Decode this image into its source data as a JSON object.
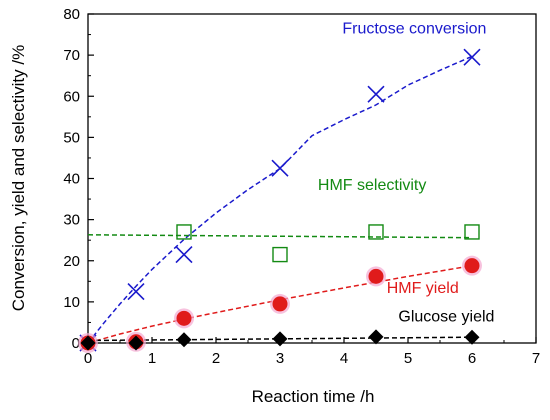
{
  "chart_data": {
    "type": "scatter",
    "xlabel": "Reaction time /h",
    "ylabel": "Conversion, yield and selectivity /%",
    "xlim": [
      0,
      7
    ],
    "ylim": [
      0,
      80
    ],
    "xticks": [
      "0",
      "1",
      "2",
      "3",
      "4",
      "5",
      "6",
      "7"
    ],
    "yticks": [
      "0",
      "10",
      "20",
      "30",
      "40",
      "50",
      "60",
      "70",
      "80"
    ],
    "grid": false,
    "series": [
      {
        "name": "Fructose conversion",
        "marker": "x",
        "color": "#1a1acc",
        "x": [
          0,
          0.75,
          1.5,
          3,
          4.5,
          6
        ],
        "y": [
          0,
          12.5,
          21.5,
          42.5,
          60.5,
          69.5
        ],
        "trend_x": [
          0,
          0.25,
          0.5,
          0.75,
          1,
          1.5,
          2,
          2.5,
          3,
          3.5,
          4,
          4.5,
          5,
          5.5,
          6
        ],
        "trend_y": [
          0,
          4.9,
          9.5,
          13.8,
          17.9,
          25.2,
          31.6,
          37.3,
          42.4,
          50.4,
          54.3,
          57.9,
          62.7,
          66.3,
          69.7
        ]
      },
      {
        "name": "HMF selectivity",
        "marker": "open-square",
        "color": "#138a13",
        "x": [
          1.5,
          3,
          4.5,
          6
        ],
        "y": [
          27,
          21.5,
          27,
          27
        ],
        "trend_x": [
          0,
          6
        ],
        "trend_y": [
          26.3,
          25.6
        ]
      },
      {
        "name": "HMF yield",
        "marker": "filled-circle",
        "color": "#e01b1b",
        "x": [
          0,
          0.75,
          1.5,
          3,
          4.5,
          6
        ],
        "y": [
          0,
          0.3,
          6,
          9.5,
          16.2,
          18.8
        ],
        "trend_x": [
          0,
          0.5,
          1,
          1.5,
          2,
          3,
          4,
          5,
          6
        ],
        "trend_y": [
          0,
          2.2,
          4.1,
          5.8,
          7.4,
          10.5,
          13.4,
          16.2,
          18.8
        ]
      },
      {
        "name": "Glucose yield",
        "marker": "filled-diamond",
        "color": "#000000",
        "x": [
          0,
          0.75,
          1.5,
          3,
          4.5,
          6
        ],
        "y": [
          0,
          0,
          0.8,
          1.0,
          1.5,
          1.4
        ],
        "trend_x": [
          0,
          6
        ],
        "trend_y": [
          0.6,
          1.4
        ]
      }
    ],
    "annotations": [
      {
        "text": "Fructose conversion",
        "color": "#1a1acc",
        "x": 5.1,
        "y": 75.2
      },
      {
        "text": "HMF selectivity",
        "color": "#138a13",
        "x": 4.44,
        "y": 37.2
      },
      {
        "text": "HMF yield",
        "color": "#e01b1b",
        "x": 5.23,
        "y": 12.2
      },
      {
        "text": "Glucose yield",
        "color": "#000000",
        "x": 5.6,
        "y": 5.2
      }
    ]
  }
}
